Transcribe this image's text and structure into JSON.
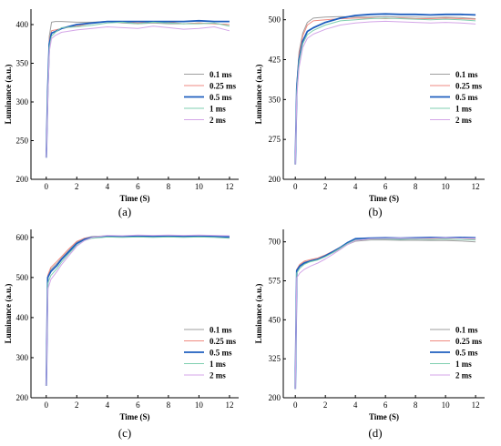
{
  "chart_data": [
    {
      "type": "line",
      "caption": "(a)",
      "xlabel": "Time (S)",
      "ylabel": "Luminance (a.u.)",
      "xlim": [
        -1,
        12.6
      ],
      "ylim": [
        200,
        420
      ],
      "xticks": [
        0,
        2,
        4,
        6,
        8,
        10,
        12
      ],
      "yticks": [
        200,
        250,
        300,
        350,
        400
      ],
      "legend_position": "right-middle",
      "series": [
        {
          "name": "0.1 ms",
          "color": "#9e9e9e",
          "width": 1.0,
          "x": [
            0,
            0.1,
            0.2,
            0.35,
            0.6,
            1,
            2,
            3,
            4,
            5,
            6,
            7,
            8,
            9,
            10,
            11,
            12
          ],
          "y": [
            230,
            320,
            385,
            403,
            404,
            404,
            403,
            403,
            404,
            402,
            401,
            402,
            401,
            401,
            402,
            401,
            400
          ]
        },
        {
          "name": "0.25 ms",
          "color": "#ef8a80",
          "width": 1.0,
          "x": [
            0,
            0.1,
            0.2,
            0.35,
            0.6,
            1,
            2,
            3,
            4,
            5,
            6,
            7,
            8,
            9,
            10,
            11,
            12
          ],
          "y": [
            230,
            318,
            380,
            392,
            393,
            395,
            398,
            402,
            404,
            403,
            402,
            403,
            403,
            401,
            402,
            401,
            400
          ]
        },
        {
          "name": "0.5 ms",
          "color": "#1f5fbf",
          "width": 1.8,
          "x": [
            0,
            0.1,
            0.2,
            0.35,
            0.6,
            1,
            2,
            3,
            4,
            5,
            6,
            7,
            8,
            9,
            10,
            11,
            12
          ],
          "y": [
            228,
            315,
            375,
            389,
            391,
            395,
            400,
            402,
            404,
            404,
            404,
            404,
            404,
            404,
            405,
            404,
            404
          ]
        },
        {
          "name": "1 ms",
          "color": "#7fcfb0",
          "width": 1.0,
          "x": [
            0,
            0.1,
            0.2,
            0.35,
            0.6,
            1,
            2,
            3,
            4,
            5,
            6,
            7,
            8,
            9,
            10,
            11,
            12
          ],
          "y": [
            228,
            310,
            370,
            385,
            390,
            396,
            397,
            399,
            402,
            403,
            401,
            403,
            402,
            401,
            401,
            402,
            398
          ]
        },
        {
          "name": "2 ms",
          "color": "#d4a6e8",
          "width": 1.0,
          "x": [
            0,
            0.1,
            0.2,
            0.35,
            0.6,
            1,
            2,
            3,
            4,
            5,
            6,
            7,
            8,
            9,
            10,
            11,
            12
          ],
          "y": [
            228,
            300,
            365,
            382,
            386,
            390,
            393,
            395,
            397,
            396,
            395,
            398,
            396,
            394,
            395,
            397,
            392
          ]
        }
      ]
    },
    {
      "type": "line",
      "caption": "(b)",
      "xlabel": "Time (S)",
      "ylabel": "Luminance (a.u.)",
      "xlim": [
        -0.8,
        12.6
      ],
      "ylim": [
        200,
        520
      ],
      "xticks": [
        0,
        2,
        4,
        6,
        8,
        10,
        12
      ],
      "yticks": [
        200,
        275,
        350,
        425,
        500
      ],
      "legend_position": "right-middle",
      "series": [
        {
          "name": "0.1 ms",
          "color": "#9e9e9e",
          "width": 1.0,
          "x": [
            0,
            0.1,
            0.25,
            0.5,
            0.8,
            1.2,
            2,
            3,
            4,
            5,
            6,
            7,
            8,
            9,
            10,
            11,
            12
          ],
          "y": [
            228,
            380,
            440,
            475,
            495,
            503,
            505,
            506,
            505,
            505,
            506,
            505,
            505,
            504,
            505,
            504,
            502
          ]
        },
        {
          "name": "0.25 ms",
          "color": "#ef8a80",
          "width": 1.0,
          "x": [
            0,
            0.1,
            0.25,
            0.5,
            0.8,
            1.2,
            2,
            3,
            4,
            5,
            6,
            7,
            8,
            9,
            10,
            11,
            12
          ],
          "y": [
            228,
            375,
            435,
            470,
            490,
            498,
            500,
            502,
            503,
            503,
            502,
            503,
            502,
            502,
            503,
            502,
            501
          ]
        },
        {
          "name": "0.5 ms",
          "color": "#1f5fbf",
          "width": 1.8,
          "x": [
            0,
            0.1,
            0.25,
            0.5,
            0.8,
            1.2,
            2,
            3,
            4,
            5,
            6,
            7,
            8,
            9,
            10,
            11,
            12
          ],
          "y": [
            228,
            370,
            425,
            460,
            478,
            485,
            495,
            503,
            508,
            510,
            511,
            510,
            510,
            509,
            510,
            510,
            509
          ]
        },
        {
          "name": "1 ms",
          "color": "#7fcfb0",
          "width": 1.0,
          "x": [
            0,
            0.1,
            0.25,
            0.5,
            0.8,
            1.2,
            2,
            3,
            4,
            5,
            6,
            7,
            8,
            9,
            10,
            11,
            12
          ],
          "y": [
            228,
            365,
            420,
            455,
            472,
            480,
            490,
            498,
            500,
            502,
            503,
            502,
            501,
            500,
            501,
            500,
            498
          ]
        },
        {
          "name": "2 ms",
          "color": "#d4a6e8",
          "width": 1.0,
          "x": [
            0,
            0.1,
            0.25,
            0.5,
            0.8,
            1.2,
            2,
            3,
            4,
            5,
            6,
            7,
            8,
            9,
            10,
            11,
            12
          ],
          "y": [
            228,
            355,
            410,
            448,
            465,
            473,
            482,
            490,
            494,
            496,
            497,
            496,
            495,
            494,
            495,
            494,
            492
          ]
        }
      ]
    },
    {
      "type": "line",
      "caption": "(c)",
      "xlabel": "Time (S)",
      "ylabel": "Luminance (a.u.)",
      "xlim": [
        -1,
        12.6
      ],
      "ylim": [
        200,
        620
      ],
      "xticks": [
        0,
        2,
        4,
        6,
        8,
        10,
        12
      ],
      "yticks": [
        200,
        300,
        400,
        500,
        600
      ],
      "legend_position": "right-bottom",
      "series": [
        {
          "name": "0.1 ms",
          "color": "#9e9e9e",
          "width": 1.0,
          "x": [
            0,
            0.1,
            0.3,
            0.7,
            1,
            1.5,
            2,
            2.5,
            3,
            4,
            5,
            6,
            7,
            8,
            9,
            10,
            11,
            12
          ],
          "y": [
            230,
            500,
            520,
            535,
            548,
            568,
            588,
            598,
            602,
            604,
            603,
            604,
            603,
            604,
            603,
            604,
            603,
            601
          ]
        },
        {
          "name": "0.25 ms",
          "color": "#ef8a80",
          "width": 1.0,
          "x": [
            0,
            0.1,
            0.3,
            0.7,
            1,
            1.5,
            2,
            2.5,
            3,
            4,
            5,
            6,
            7,
            8,
            9,
            10,
            11,
            12
          ],
          "y": [
            230,
            505,
            525,
            540,
            552,
            572,
            590,
            598,
            601,
            602,
            603,
            602,
            603,
            602,
            603,
            602,
            601,
            600
          ]
        },
        {
          "name": "0.5 ms",
          "color": "#1f5fbf",
          "width": 1.8,
          "x": [
            0,
            0.1,
            0.3,
            0.7,
            1,
            1.5,
            2,
            2.5,
            3,
            4,
            5,
            6,
            7,
            8,
            9,
            10,
            11,
            12
          ],
          "y": [
            230,
            500,
            515,
            530,
            545,
            565,
            585,
            595,
            600,
            602,
            602,
            603,
            602,
            603,
            602,
            603,
            602,
            601
          ]
        },
        {
          "name": "1 ms",
          "color": "#7fcfb0",
          "width": 1.0,
          "x": [
            0,
            0.1,
            0.3,
            0.7,
            1,
            1.5,
            2,
            2.5,
            3,
            4,
            5,
            6,
            7,
            8,
            9,
            10,
            11,
            12
          ],
          "y": [
            230,
            485,
            505,
            522,
            538,
            560,
            580,
            592,
            598,
            601,
            600,
            601,
            600,
            601,
            600,
            601,
            600,
            598
          ]
        },
        {
          "name": "2 ms",
          "color": "#d4a6e8",
          "width": 1.0,
          "x": [
            0,
            0.1,
            0.3,
            0.7,
            1,
            1.5,
            2,
            2.5,
            3,
            4,
            5,
            6,
            7,
            8,
            9,
            10,
            11,
            12
          ],
          "y": [
            230,
            470,
            495,
            515,
            532,
            555,
            578,
            592,
            600,
            605,
            604,
            606,
            605,
            606,
            605,
            606,
            605,
            604
          ]
        }
      ]
    },
    {
      "type": "line",
      "caption": "(d)",
      "xlabel": "Time (S)",
      "ylabel": "Luminance (a.u.)",
      "xlim": [
        -0.8,
        12.6
      ],
      "ylim": [
        200,
        740
      ],
      "xticks": [
        0,
        2,
        4,
        6,
        8,
        10,
        12
      ],
      "yticks": [
        200,
        325,
        450,
        575,
        700
      ],
      "legend_position": "right-bottom",
      "series": [
        {
          "name": "0.1 ms",
          "color": "#9e9e9e",
          "width": 1.0,
          "x": [
            0,
            0.1,
            0.3,
            0.6,
            1,
            1.5,
            2,
            2.5,
            3,
            3.5,
            4,
            5,
            6,
            7,
            8,
            9,
            10,
            11,
            12
          ],
          "y": [
            228,
            610,
            625,
            635,
            640,
            645,
            655,
            665,
            678,
            692,
            702,
            706,
            706,
            705,
            705,
            704,
            704,
            703,
            700
          ]
        },
        {
          "name": "0.25 ms",
          "color": "#ef8a80",
          "width": 1.0,
          "x": [
            0,
            0.1,
            0.3,
            0.6,
            1,
            1.5,
            2,
            2.5,
            3,
            3.5,
            4,
            5,
            6,
            7,
            8,
            9,
            10,
            11,
            12
          ],
          "y": [
            228,
            612,
            628,
            638,
            643,
            648,
            658,
            670,
            683,
            697,
            707,
            710,
            709,
            710,
            709,
            710,
            709,
            708,
            707
          ]
        },
        {
          "name": "0.5 ms",
          "color": "#1f5fbf",
          "width": 1.8,
          "x": [
            0,
            0.1,
            0.3,
            0.6,
            1,
            1.5,
            2,
            2.5,
            3,
            3.5,
            4,
            5,
            6,
            7,
            8,
            9,
            10,
            11,
            12
          ],
          "y": [
            228,
            608,
            622,
            632,
            638,
            644,
            655,
            668,
            682,
            698,
            710,
            712,
            713,
            712,
            713,
            714,
            713,
            714,
            713
          ]
        },
        {
          "name": "1 ms",
          "color": "#7fcfb0",
          "width": 1.0,
          "x": [
            0,
            0.1,
            0.3,
            0.6,
            1,
            1.5,
            2,
            2.5,
            3,
            3.5,
            4,
            5,
            6,
            7,
            8,
            9,
            10,
            11,
            12
          ],
          "y": [
            228,
            600,
            615,
            628,
            636,
            642,
            652,
            665,
            680,
            695,
            706,
            709,
            709,
            708,
            709,
            708,
            709,
            708,
            706
          ]
        },
        {
          "name": "2 ms",
          "color": "#d4a6e8",
          "width": 1.0,
          "x": [
            0,
            0.1,
            0.3,
            0.6,
            1,
            1.5,
            2,
            2.5,
            3,
            3.5,
            4,
            5,
            6,
            7,
            8,
            9,
            10,
            11,
            12
          ],
          "y": [
            228,
            585,
            600,
            612,
            622,
            632,
            645,
            660,
            676,
            692,
            704,
            710,
            711,
            712,
            711,
            712,
            713,
            712,
            711
          ]
        }
      ]
    }
  ]
}
